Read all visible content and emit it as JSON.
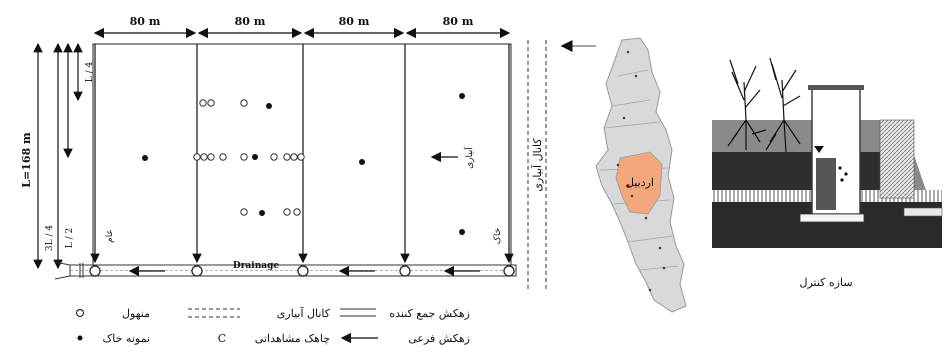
{
  "field": {
    "width_labels": [
      "80 m",
      "80 m",
      "80 m",
      "80 m"
    ],
    "length_label": "L=168 m",
    "fraction_labels": [
      "L / 4",
      "L / 2",
      "3L / 4"
    ],
    "drainage_label": "Drainage",
    "irrigation_side_label": "آبیاری",
    "canal_label": "کانال آبیاری",
    "edge_label_left": "عام",
    "edge_label_right": "خاک"
  },
  "legend": {
    "collector_drain": "زهکش جمع کننده",
    "lateral_drain": "زهکش فرعی",
    "irrigation_canal": "کانال آبیاری",
    "observation_well": "چاهک مشاهداتی",
    "manhole": "منهول",
    "soil_sample": "نمونه خاک",
    "observation_symbol": "C"
  },
  "map": {
    "center_label": "اردبیل",
    "colors": {
      "land": "#d9d9d9",
      "highlight": "#f3a77d",
      "border": "#9a9a9a"
    }
  },
  "control_structure": {
    "caption": "سازه کنترل"
  }
}
